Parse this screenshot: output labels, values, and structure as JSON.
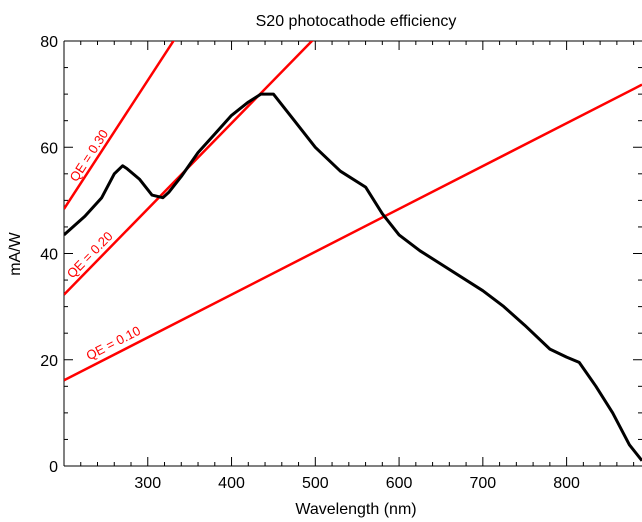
{
  "chart_data": {
    "type": "line",
    "title": "S20 photocathode efficiency",
    "xlabel": "Wavelength (nm)",
    "ylabel": "mA/W",
    "xlim": [
      200,
      890
    ],
    "ylim": [
      0,
      80
    ],
    "xticks": [
      300,
      400,
      500,
      600,
      700,
      800
    ],
    "yticks": [
      0,
      20,
      40,
      60,
      80
    ],
    "grid": false,
    "series": [
      {
        "color": "#000000",
        "x": [
          200,
          225,
          245,
          260,
          270,
          275,
          290,
          305,
          318,
          325,
          340,
          360,
          380,
          400,
          420,
          435,
          450,
          475,
          500,
          530,
          560,
          580,
          600,
          625,
          650,
          700,
          725,
          750,
          780,
          800,
          815,
          835,
          855,
          875,
          890
        ],
        "y": [
          43.5,
          47,
          50.5,
          55,
          56.5,
          56,
          54,
          51,
          50.5,
          51.5,
          54.5,
          59,
          62.5,
          66,
          68.5,
          70,
          70,
          65,
          60,
          55.5,
          52.5,
          47.5,
          43.5,
          40.5,
          38,
          33,
          30,
          26.5,
          22,
          20.5,
          19.5,
          15,
          10,
          4,
          1
        ]
      }
    ],
    "qe_lines": [
      {
        "name": "QE = 0.10",
        "qe": 0.1,
        "color": "#ff0000"
      },
      {
        "name": "QE = 0.20",
        "qe": 0.2,
        "color": "#ff0000"
      },
      {
        "name": "QE = 0.30",
        "qe": 0.3,
        "color": "#ff0000"
      }
    ]
  }
}
